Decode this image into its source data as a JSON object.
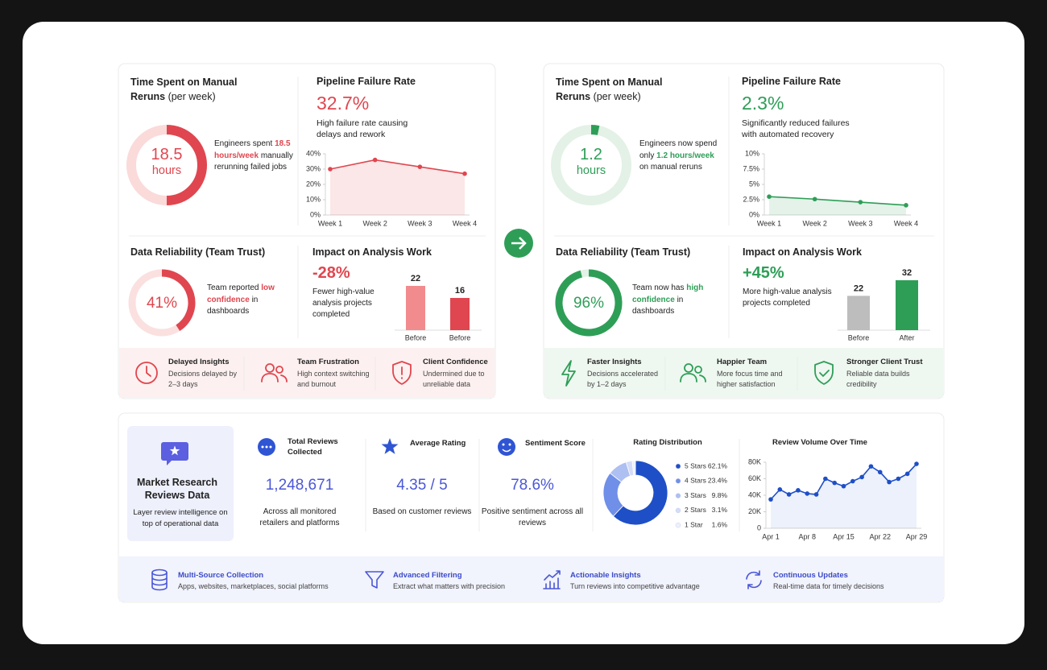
{
  "before": {
    "accent": "#e0464f",
    "time_title": "Time Spent on Manual Reruns",
    "time_unit": "(per week)",
    "time_value": "18.5",
    "time_value_unit": "hours",
    "time_text": [
      "Engineers spent",
      "18.5 hours/week",
      "manually rerunning failed jobs"
    ],
    "pipeline_title": "Pipeline Failure Rate",
    "pipeline_value": "32.7%",
    "pipeline_desc": "High failure rate causing delays and rework",
    "reliability_title": "Data Reliability (Team Trust)",
    "reliability_text": [
      "Team reported",
      "low confidence",
      "in dashboards"
    ],
    "impact_title": "Impact on Analysis Work",
    "impact_value": "-28%",
    "impact_desc": "Fewer high-value analysis projects completed",
    "footer": [
      {
        "title": "Delayed Insights",
        "desc": "Decisions delayed by 2–3 days"
      },
      {
        "title": "Team Frustration",
        "desc": "High context switching and burnout"
      },
      {
        "title": "Client Confidence",
        "desc": "Undermined due to unreliable data"
      }
    ]
  },
  "after": {
    "accent": "#2e9e57",
    "time_title": "Time Spent on Manual Reruns",
    "time_unit": "(per week)",
    "time_value": "1.2",
    "time_value_unit": "hours",
    "time_text": [
      "Engineers now spend only",
      "1.2 hours/week",
      "on manual reruns"
    ],
    "pipeline_title": "Pipeline Failure Rate",
    "pipeline_value": "2.3%",
    "pipeline_desc": "Significantly reduced failures with automated recovery",
    "reliability_title": "Data Reliability (Team Trust)",
    "reliability_text": [
      "Team now has",
      "high confidence",
      "in dashboards"
    ],
    "impact_title": "Impact on Analysis Work",
    "impact_value": "+45%",
    "impact_desc": "More high-value analysis projects completed",
    "footer": [
      {
        "title": "Faster Insights",
        "desc": "Decisions accelerated by 1–2 days"
      },
      {
        "title": "Happier Team",
        "desc": "More focus time and higher satisfaction"
      },
      {
        "title": "Stronger Client Trust",
        "desc": "Reliable data builds credibility"
      }
    ]
  },
  "research": {
    "title": "Market Research Reviews Data",
    "desc": "Layer review intelligence on top of operational data",
    "stats": [
      {
        "title": "Total Reviews Collected",
        "value": "1,248,671",
        "desc": "Across all monitored retailers and platforms"
      },
      {
        "title": "Average Rating",
        "value": "4.35 / 5",
        "desc": "Based on customer reviews"
      },
      {
        "title": "Sentiment Score",
        "value": "78.6%",
        "desc": "Positive sentiment across all reviews"
      }
    ]
  },
  "features": [
    {
      "title": "Multi-Source Collection",
      "desc": "Apps, websites, marketplaces, social platforms"
    },
    {
      "title": "Advanced Filtering",
      "desc": "Extract what matters with precision"
    },
    {
      "title": "Actionable Insights",
      "desc": "Turn reviews into competitive advantage"
    },
    {
      "title": "Continuous Updates",
      "desc": "Real-time data for timely decisions"
    }
  ],
  "chart_data": [
    {
      "type": "line",
      "categories": [
        "Week 1",
        "Week 2",
        "Week 3",
        "Week 4"
      ],
      "values": [
        30,
        36,
        31.5,
        27
      ],
      "color": "#e0464f",
      "ylim": [
        0,
        40
      ],
      "yticks": [
        {
          "value": 0,
          "label": "0%"
        },
        {
          "value": 10,
          "label": "10%"
        },
        {
          "value": 20,
          "label": "20%"
        },
        {
          "value": 30,
          "label": "30%"
        },
        {
          "value": 40,
          "label": "40%"
        }
      ]
    },
    {
      "type": "gauge",
      "values": [
        41
      ],
      "value_labels": [
        "41%"
      ],
      "color": "#e0464f",
      "track": "#fbe0e0"
    },
    {
      "type": "bar",
      "categories": [
        "Before",
        "Before"
      ],
      "values": [
        22,
        16
      ],
      "colors": [
        "#f28b8e",
        "#e0464f"
      ]
    },
    {
      "type": "line",
      "categories": [
        "Week 1",
        "Week 2",
        "Week 3",
        "Week 4"
      ],
      "values": [
        3,
        2.6,
        2.1,
        1.6
      ],
      "color": "#2e9e57",
      "ylim": [
        0,
        10
      ],
      "yticks": [
        {
          "value": 0,
          "label": "0%"
        },
        {
          "value": 2.5,
          "label": "2.5%"
        },
        {
          "value": 5,
          "label": "5%"
        },
        {
          "value": 7.5,
          "label": "7.5%"
        },
        {
          "value": 10,
          "label": "10%"
        }
      ]
    },
    {
      "type": "gauge",
      "values": [
        96
      ],
      "value_labels": [
        "96%"
      ],
      "color": "#2e9e57",
      "track": "#e3f1e6"
    },
    {
      "type": "bar",
      "categories": [
        "Before",
        "After"
      ],
      "values": [
        22,
        32
      ],
      "colors": [
        "#bdbdbd",
        "#2e9e57"
      ]
    },
    {
      "type": "pie",
      "title": "Rating Distribution",
      "categories": [
        "5 Stars",
        "4 Stars",
        "3 Stars",
        "2 Stars",
        "1 Star"
      ],
      "values": [
        62.1,
        23.4,
        9.8,
        3.1,
        1.6
      ],
      "value_labels": [
        "62.1%",
        "23.4%",
        "9.8%",
        "3.1%",
        "1.6%"
      ],
      "colors": [
        "#1e4fc7",
        "#6f8fe8",
        "#aebff2",
        "#d4dcf7",
        "#eef1fb"
      ]
    },
    {
      "type": "line",
      "title": "Review Volume Over Time",
      "categories": [
        "Apr 1",
        null,
        null,
        null,
        "Apr 8",
        null,
        null,
        null,
        "Apr 15",
        null,
        null,
        null,
        "Apr 22",
        null,
        null,
        null,
        "Apr 29"
      ],
      "values": [
        35000,
        47000,
        41000,
        46000,
        42000,
        41000,
        60000,
        55000,
        51000,
        57000,
        62000,
        75000,
        68000,
        56000,
        60000,
        66000,
        78000
      ],
      "color": "#1e4fc7",
      "ylim": [
        0,
        80000
      ],
      "yticks": [
        0,
        {
          "value": 20000,
          "label": "20K"
        },
        {
          "value": 40000,
          "label": "40K"
        },
        {
          "value": 60000,
          "label": "60K"
        },
        {
          "value": 80000,
          "label": "80K"
        }
      ]
    }
  ]
}
